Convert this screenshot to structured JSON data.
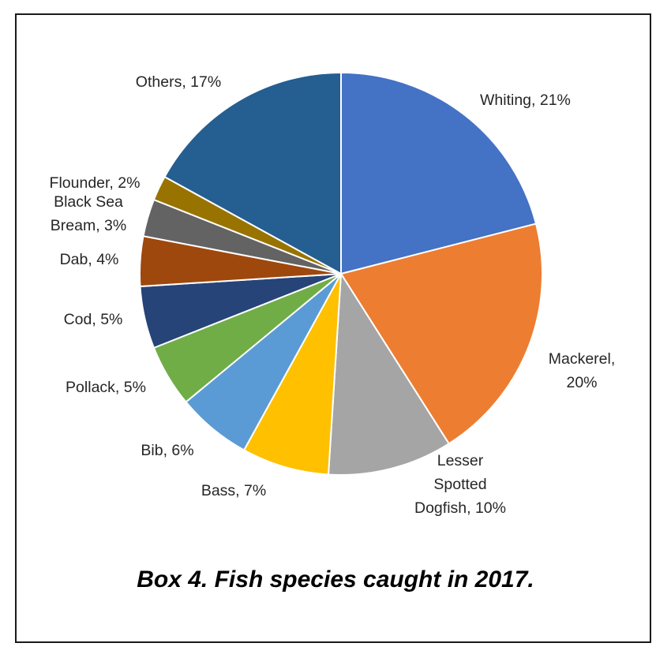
{
  "chart_data": {
    "type": "pie",
    "caption": "Box 4. Fish species caught in 2017.",
    "slices": [
      {
        "name": "Whiting",
        "value": 21,
        "label": "Whiting, 21%",
        "color": "#4472C4"
      },
      {
        "name": "Mackerel",
        "value": 20,
        "label": "Mackerel, 20%",
        "color": "#ED7D31"
      },
      {
        "name": "Lesser Spotted Dogfish",
        "value": 10,
        "label": "Lesser Spotted Dogfish, 10%",
        "color": "#A5A5A5"
      },
      {
        "name": "Bass",
        "value": 7,
        "label": "Bass, 7%",
        "color": "#FFC000"
      },
      {
        "name": "Bib",
        "value": 6,
        "label": "Bib, 6%",
        "color": "#5B9BD5"
      },
      {
        "name": "Pollack",
        "value": 5,
        "label": "Pollack, 5%",
        "color": "#70AD47"
      },
      {
        "name": "Cod",
        "value": 5,
        "label": "Cod, 5%",
        "color": "#264478"
      },
      {
        "name": "Dab",
        "value": 4,
        "label": "Dab, 4%",
        "color": "#9E480E"
      },
      {
        "name": "Black Sea Bream",
        "value": 3,
        "label": "Black Sea Bream, 3%",
        "color": "#636363"
      },
      {
        "name": "Flounder",
        "value": 2,
        "label": "Flounder, 2%",
        "color": "#997300"
      },
      {
        "name": "Others",
        "value": 17,
        "label": "Others, 17%",
        "color": "#255E91"
      }
    ]
  }
}
